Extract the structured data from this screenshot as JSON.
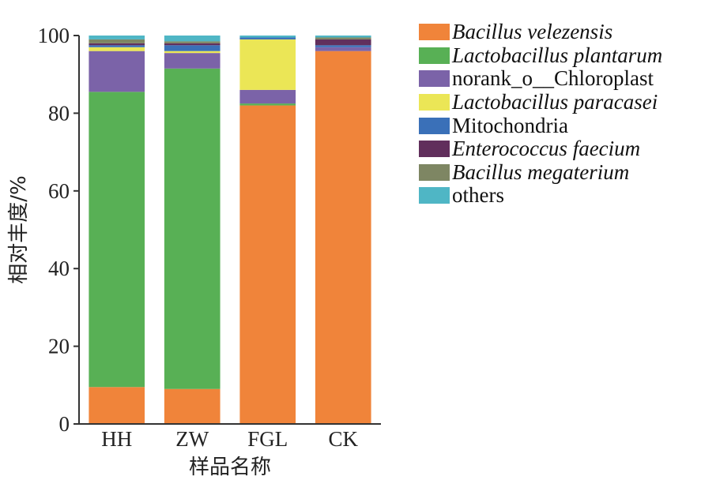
{
  "chart_data": {
    "type": "bar",
    "stacked": true,
    "xlabel": "样品名称",
    "ylabel": "相对丰度/%",
    "ylim": [
      0,
      100
    ],
    "yticks": [
      0,
      20,
      40,
      60,
      80,
      100
    ],
    "categories": [
      "HH",
      "ZW",
      "FGL",
      "CK"
    ],
    "grid": false,
    "legend_position": "right",
    "series": [
      {
        "name": "Bacillus velezensis",
        "italic": true,
        "color": "#f0843a",
        "values": [
          9.5,
          9.0,
          82.0,
          96.0
        ]
      },
      {
        "name": "Lactobacillus plantarum",
        "italic": true,
        "color": "#58b055",
        "values": [
          76.0,
          82.5,
          0.5,
          0.0
        ]
      },
      {
        "name": "norank_o__Chloroplast",
        "italic": false,
        "color": "#7b63a8",
        "values": [
          10.5,
          4.0,
          3.5,
          1.0
        ]
      },
      {
        "name": "Lactobacillus paracasei",
        "italic": true,
        "color": "#ebe656",
        "values": [
          1.0,
          0.5,
          13.0,
          0.0
        ]
      },
      {
        "name": "Mitochondria",
        "italic": false,
        "color": "#3a70b8",
        "values": [
          0.5,
          1.5,
          0.5,
          0.5
        ]
      },
      {
        "name": "Enterococcus faecium",
        "italic": true,
        "color": "#612f5c",
        "values": [
          0.5,
          0.5,
          0.0,
          1.5
        ]
      },
      {
        "name": "Bacillus megaterium",
        "italic": true,
        "color": "#7e8663",
        "values": [
          1.0,
          0.5,
          0.0,
          0.5
        ]
      },
      {
        "name": "others",
        "italic": false,
        "color": "#4fb6c5",
        "values": [
          1.0,
          1.5,
          0.5,
          0.5
        ]
      }
    ]
  }
}
